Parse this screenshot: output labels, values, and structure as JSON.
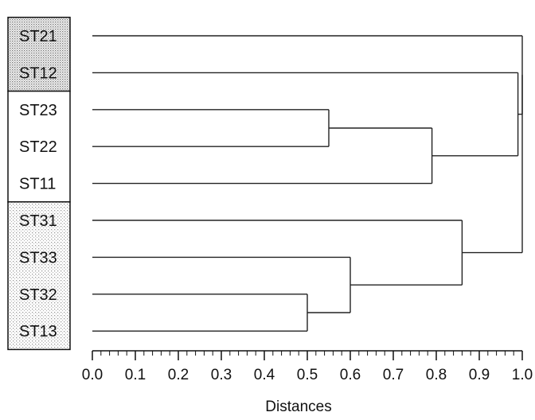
{
  "chart_data": {
    "type": "dendrogram",
    "xlabel": "Distances",
    "xlim": [
      0.0,
      1.0
    ],
    "ticks": [
      "0.0",
      "0.1",
      "0.2",
      "0.3",
      "0.4",
      "0.5",
      "0.6",
      "0.7",
      "0.8",
      "0.9",
      "1.0"
    ],
    "leaves": [
      {
        "label": "ST21",
        "group": "dense"
      },
      {
        "label": "ST12",
        "group": "dense"
      },
      {
        "label": "ST23",
        "group": "white"
      },
      {
        "label": "ST22",
        "group": "white"
      },
      {
        "label": "ST11",
        "group": "white"
      },
      {
        "label": "ST31",
        "group": "light"
      },
      {
        "label": "ST33",
        "group": "light"
      },
      {
        "label": "ST32",
        "group": "light"
      },
      {
        "label": "ST13",
        "group": "light"
      }
    ],
    "merges": [
      {
        "id": "A",
        "left": "ST23",
        "right": "ST22",
        "height": 0.55
      },
      {
        "id": "B",
        "left": "A",
        "right": "ST11",
        "height": 0.79
      },
      {
        "id": "C",
        "left": "ST32",
        "right": "ST13",
        "height": 0.5
      },
      {
        "id": "D",
        "left": "ST33",
        "right": "C",
        "height": 0.6
      },
      {
        "id": "E",
        "left": "ST31",
        "right": "D",
        "height": 0.86
      },
      {
        "id": "F",
        "left": "ST12",
        "right": "B",
        "height": 0.99
      },
      {
        "id": "G",
        "left": "ST21",
        "right": "F",
        "height": 1.0
      },
      {
        "id": "H",
        "left": "G",
        "right": "E",
        "height": 1.0
      }
    ],
    "colors": {
      "dense": "#c9c9c9",
      "light": "#e2e2e2",
      "white": "#ffffff",
      "line": "#222222"
    }
  }
}
